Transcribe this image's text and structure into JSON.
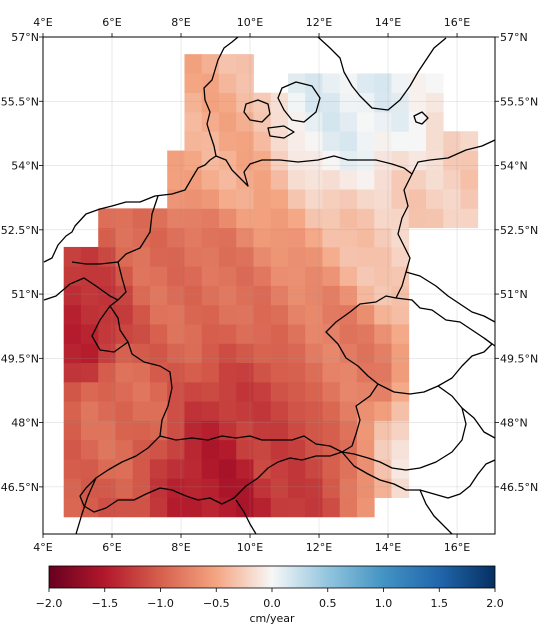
{
  "map": {
    "lon_range": [
      4,
      17.1
    ],
    "lat_range": [
      45.4,
      57
    ],
    "top_ticks": [
      "4°E",
      "6°E",
      "8°E",
      "10°E",
      "12°E",
      "14°E",
      "16°E"
    ],
    "bottom_ticks": [
      "4°E",
      "6°E",
      "8°E",
      "10°E",
      "12°E",
      "14°E",
      "16°E"
    ],
    "left_ticks": [
      "57°N",
      "55.5°N",
      "54°N",
      "52.5°N",
      "51°N",
      "49.5°N",
      "48°N",
      "46.5°N"
    ],
    "right_ticks": [
      "57°N",
      "55.5°N",
      "54°N",
      "52.5°N",
      "51°N",
      "49.5°N",
      "48°N",
      "46.5°N"
    ],
    "lon_tick_values": [
      4,
      6,
      8,
      10,
      12,
      14,
      16
    ],
    "lat_tick_values": [
      57,
      55.5,
      54,
      52.5,
      51,
      49.5,
      48,
      46.5
    ],
    "grid_lines": true
  },
  "colorbar": {
    "label": "cm/year",
    "tick_labels": [
      "−2.0",
      "−1.5",
      "−1.0",
      "−0.5",
      "0.0",
      "0.5",
      "1.0",
      "1.5",
      "2.0"
    ],
    "range": [
      -2.0,
      2.0
    ],
    "colormap": "RdBu"
  },
  "trend_field": {
    "units": "cm/year",
    "cells": [
      {
        "lon": 5.0,
        "lat": 49.9,
        "v": -1.4
      },
      {
        "lon": 6.0,
        "lat": 48.5,
        "v": -0.9
      },
      {
        "lon": 8.0,
        "lat": 51.5,
        "v": -0.9
      },
      {
        "lon": 10.5,
        "lat": 47.4,
        "v": -1.2
      },
      {
        "lon": 9.5,
        "lat": 46.7,
        "v": -1.5
      },
      {
        "lon": 13.0,
        "lat": 49.6,
        "v": -0.8
      },
      {
        "lon": 9.0,
        "lat": 54.5,
        "v": -0.45
      },
      {
        "lon": 14.5,
        "lat": 51.5,
        "v": -0.25
      },
      {
        "lon": 15.5,
        "lat": 47.7,
        "v": -0.12
      },
      {
        "lon": 12.5,
        "lat": 55.7,
        "v": 0.1
      }
    ]
  }
}
